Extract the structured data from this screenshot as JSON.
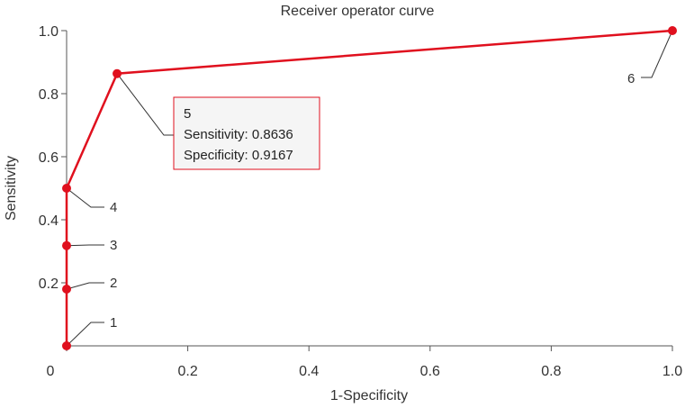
{
  "chart_data": {
    "type": "line",
    "title": "Receiver operator curve",
    "xlabel": "1-Specificity",
    "ylabel": "Sensitivity",
    "xlim": [
      0,
      1
    ],
    "ylim": [
      0,
      1
    ],
    "x_ticks": [
      {
        "value": 0,
        "label": "0"
      },
      {
        "value": 0.2,
        "label": "0.2"
      },
      {
        "value": 0.4,
        "label": "0.4"
      },
      {
        "value": 0.6,
        "label": "0.6"
      },
      {
        "value": 0.8,
        "label": "0.8"
      },
      {
        "value": 1.0,
        "label": "1.0"
      }
    ],
    "y_ticks": [
      {
        "value": 0.2,
        "label": "0.2"
      },
      {
        "value": 0.4,
        "label": "0.4"
      },
      {
        "value": 0.6,
        "label": "0.6"
      },
      {
        "value": 0.8,
        "label": "0.8"
      },
      {
        "value": 1.0,
        "label": "1.0"
      }
    ],
    "grid": false,
    "line_color": "#e0101e",
    "points": [
      {
        "label": "1",
        "x": 0,
        "y": 0
      },
      {
        "label": "2",
        "x": 0,
        "y": 0.18
      },
      {
        "label": "3",
        "x": 0,
        "y": 0.318
      },
      {
        "label": "4",
        "x": 0,
        "y": 0.5
      },
      {
        "label": "5",
        "x": 0.0833,
        "y": 0.8636
      },
      {
        "label": "6",
        "x": 1,
        "y": 1
      }
    ],
    "tooltip": {
      "point": "5",
      "title": "5",
      "lines": [
        "Sensitivity: 0.8636",
        "Specificity: 0.9167"
      ]
    }
  }
}
